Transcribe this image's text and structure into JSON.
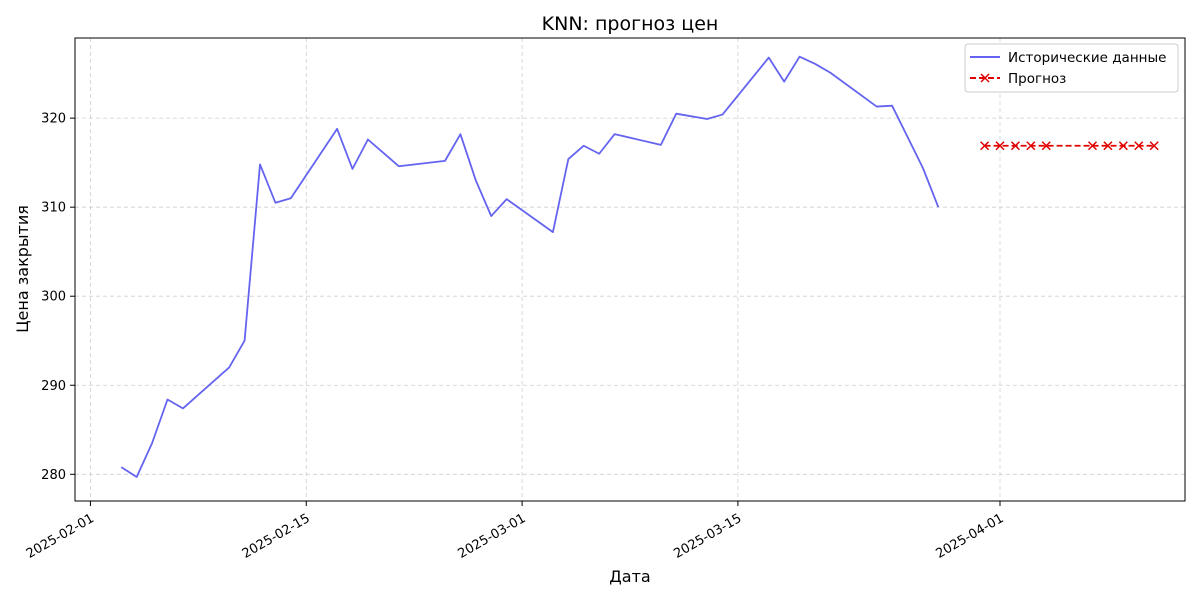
{
  "chart_data": {
    "type": "line",
    "title": "KNN: прогноз цен",
    "xlabel": "Дата",
    "ylabel": "Цена закрытия",
    "xlim": [
      "2025-01-31",
      "2025-04-13"
    ],
    "ylim": [
      277,
      329
    ],
    "x_ticks": [
      "2025-02-01",
      "2025-02-15",
      "2025-03-01",
      "2025-03-15",
      "2025-04-01"
    ],
    "y_ticks": [
      280,
      290,
      300,
      310,
      320
    ],
    "grid": true,
    "legend_position": "top-right",
    "series": [
      {
        "name": "Исторические данные",
        "color": "#6464f0",
        "style": "solid",
        "marker": "none",
        "points": [
          [
            "2025-02-03",
            280.8
          ],
          [
            "2025-02-04",
            279.7
          ],
          [
            "2025-02-05",
            283.5
          ],
          [
            "2025-02-06",
            288.4
          ],
          [
            "2025-02-07",
            287.4
          ],
          [
            "2025-02-10",
            292.0
          ],
          [
            "2025-02-11",
            295.0
          ],
          [
            "2025-02-12",
            314.8
          ],
          [
            "2025-02-13",
            310.5
          ],
          [
            "2025-02-14",
            311.0
          ],
          [
            "2025-02-17",
            318.8
          ],
          [
            "2025-02-18",
            314.3
          ],
          [
            "2025-02-19",
            317.6
          ],
          [
            "2025-02-21",
            314.6
          ],
          [
            "2025-02-24",
            315.2
          ],
          [
            "2025-02-25",
            318.2
          ],
          [
            "2025-02-26",
            313.0
          ],
          [
            "2025-02-27",
            309.0
          ],
          [
            "2025-02-28",
            310.9
          ],
          [
            "2025-03-03",
            307.2
          ],
          [
            "2025-03-04",
            315.4
          ],
          [
            "2025-03-05",
            316.9
          ],
          [
            "2025-03-06",
            316.0
          ],
          [
            "2025-03-07",
            318.2
          ],
          [
            "2025-03-10",
            317.0
          ],
          [
            "2025-03-11",
            320.5
          ],
          [
            "2025-03-13",
            319.9
          ],
          [
            "2025-03-14",
            320.4
          ],
          [
            "2025-03-17",
            326.8
          ],
          [
            "2025-03-18",
            324.1
          ],
          [
            "2025-03-19",
            326.9
          ],
          [
            "2025-03-20",
            326.1
          ],
          [
            "2025-03-21",
            325.1
          ],
          [
            "2025-03-24",
            321.3
          ],
          [
            "2025-03-25",
            321.4
          ],
          [
            "2025-03-27",
            314.4
          ],
          [
            "2025-03-28",
            310.0
          ]
        ]
      },
      {
        "name": "Прогноз",
        "color": "#e00000",
        "style": "dashed",
        "marker": "x",
        "points": [
          [
            "2025-03-31",
            316.9
          ],
          [
            "2025-04-01",
            316.9
          ],
          [
            "2025-04-02",
            316.9
          ],
          [
            "2025-04-03",
            316.9
          ],
          [
            "2025-04-04",
            316.9
          ],
          [
            "2025-04-07",
            316.9
          ],
          [
            "2025-04-08",
            316.9
          ],
          [
            "2025-04-09",
            316.9
          ],
          [
            "2025-04-10",
            316.9
          ],
          [
            "2025-04-11",
            316.9
          ]
        ]
      }
    ]
  }
}
